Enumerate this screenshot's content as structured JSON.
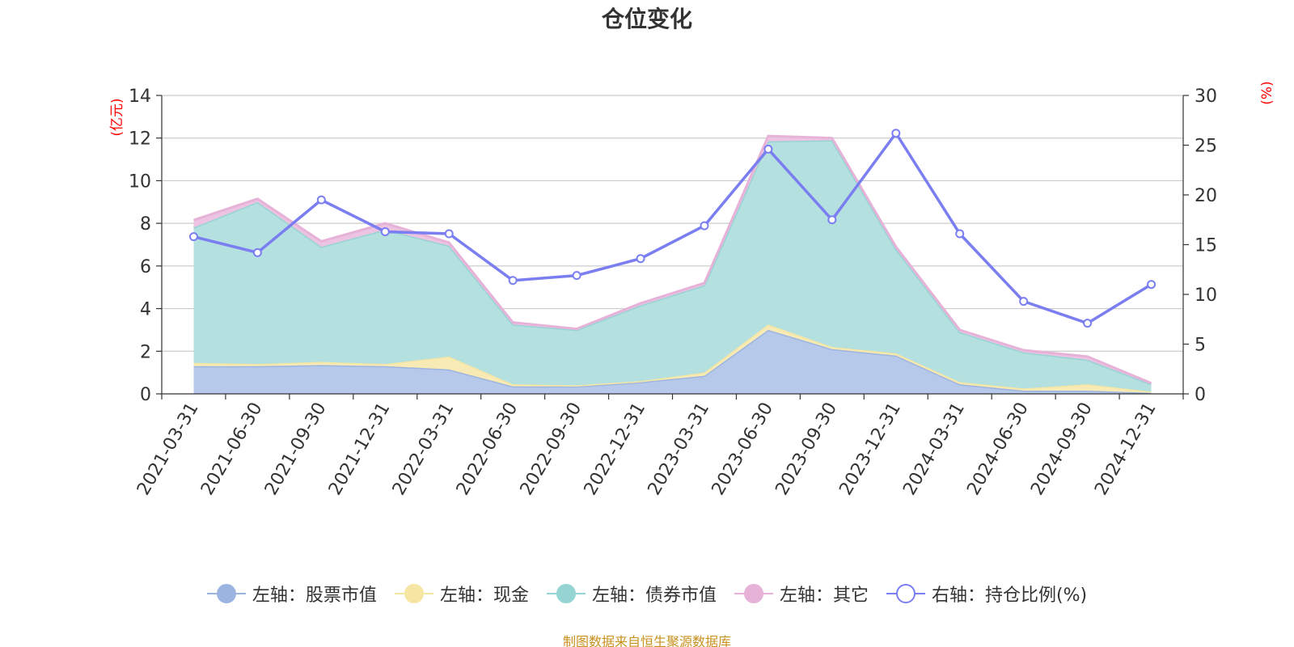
{
  "chart_data": {
    "type": "area",
    "title": "仓位变化",
    "categories": [
      "2021-03-31",
      "2021-06-30",
      "2021-09-30",
      "2021-12-31",
      "2022-03-31",
      "2022-06-30",
      "2022-09-30",
      "2022-12-31",
      "2023-03-31",
      "2023-06-30",
      "2023-09-30",
      "2023-12-31",
      "2024-03-31",
      "2024-06-30",
      "2024-09-30",
      "2024-12-31"
    ],
    "left_axis": {
      "unit": "(亿元)",
      "ylim": [
        0,
        14
      ],
      "ticks": [
        "0",
        "2",
        "4",
        "6",
        "8",
        "10",
        "12",
        "14"
      ]
    },
    "right_axis": {
      "unit": "(%)",
      "ylim": [
        0,
        30
      ],
      "ticks": [
        "0",
        "5",
        "10",
        "15",
        "20",
        "25",
        "30"
      ]
    },
    "stacked_series": [
      {
        "name": "左轴：股票市值",
        "color": "#9cb4e0",
        "fill": "#b7c9ea",
        "values": [
          1.3,
          1.3,
          1.35,
          1.3,
          1.15,
          0.35,
          0.35,
          0.55,
          0.85,
          3.0,
          2.1,
          1.8,
          0.45,
          0.15,
          0.15,
          0.05
        ]
      },
      {
        "name": "左轴：现金",
        "color": "#f6e6a3",
        "fill": "#f8eab5",
        "values": [
          0.15,
          0.1,
          0.15,
          0.1,
          0.6,
          0.1,
          0.05,
          0.05,
          0.15,
          0.25,
          0.1,
          0.1,
          0.1,
          0.1,
          0.3,
          0.05
        ]
      },
      {
        "name": "左轴：债券市值",
        "color": "#96d4d4",
        "fill": "#b4e0e0",
        "values": [
          6.35,
          7.6,
          5.4,
          6.3,
          5.2,
          2.8,
          2.6,
          3.55,
          4.1,
          8.6,
          9.7,
          4.9,
          2.35,
          1.7,
          1.15,
          0.35
        ]
      },
      {
        "name": "左轴：其它",
        "color": "#e6b2d8",
        "fill": "#ecc4e2",
        "values": [
          0.35,
          0.15,
          0.25,
          0.3,
          0.15,
          0.1,
          0.05,
          0.1,
          0.1,
          0.25,
          0.1,
          0.1,
          0.1,
          0.1,
          0.15,
          0.05
        ]
      }
    ],
    "line_series": {
      "name": "右轴：持仓比例(%)",
      "color": "#7a7ef0",
      "values": [
        15.8,
        14.2,
        19.5,
        16.3,
        16.1,
        11.4,
        11.9,
        13.6,
        16.9,
        24.6,
        17.5,
        26.2,
        16.1,
        9.3,
        7.1,
        11.0
      ]
    },
    "legend": [
      "左轴：股票市值",
      "左轴：现金",
      "左轴：债券市值",
      "左轴：其它",
      "右轴：持仓比例(%)"
    ]
  },
  "source": "制图数据来自恒生聚源数据库"
}
